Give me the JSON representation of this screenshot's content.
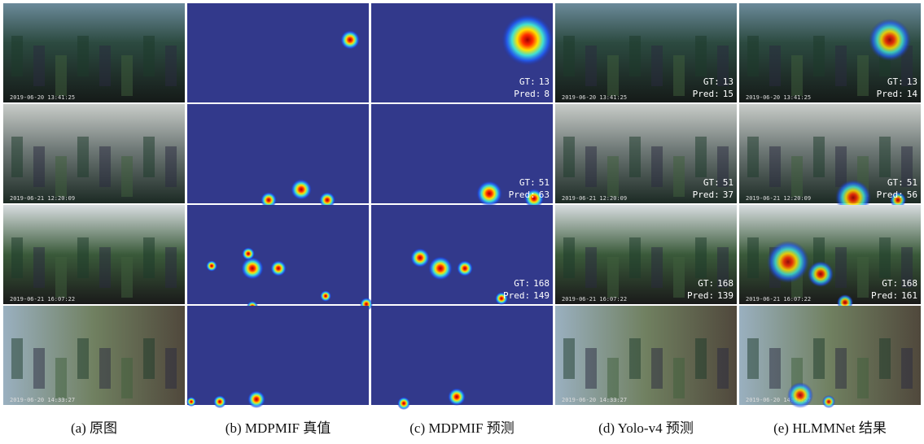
{
  "labels": {
    "gt": "GT:",
    "pred": "Pred:"
  },
  "captions": [
    "(a)  原图",
    "(b)  MDPMIF 真值",
    "(c)  MDPMIF 预测",
    "(d)  Yolo-v4 预测",
    "(e)  HLMMNet 结果"
  ],
  "rows": [
    {
      "timestamp": "2019-06-20 13:41:25",
      "gt": "13",
      "pred_c": "8",
      "pred_d": "15",
      "pred_e": "14"
    },
    {
      "timestamp": "2019-06-21 12:20:09",
      "gt": "51",
      "pred_c": "63",
      "pred_d": "37",
      "pred_e": "56"
    },
    {
      "timestamp": "2019-06-21 16:07:22",
      "gt": "168",
      "pred_c": "149",
      "pred_d": "139",
      "pred_e": "161"
    },
    {
      "timestamp": "2019-06-20 14:33:27",
      "gt": "",
      "pred_c": "",
      "pred_d": "",
      "pred_e": ""
    }
  ]
}
